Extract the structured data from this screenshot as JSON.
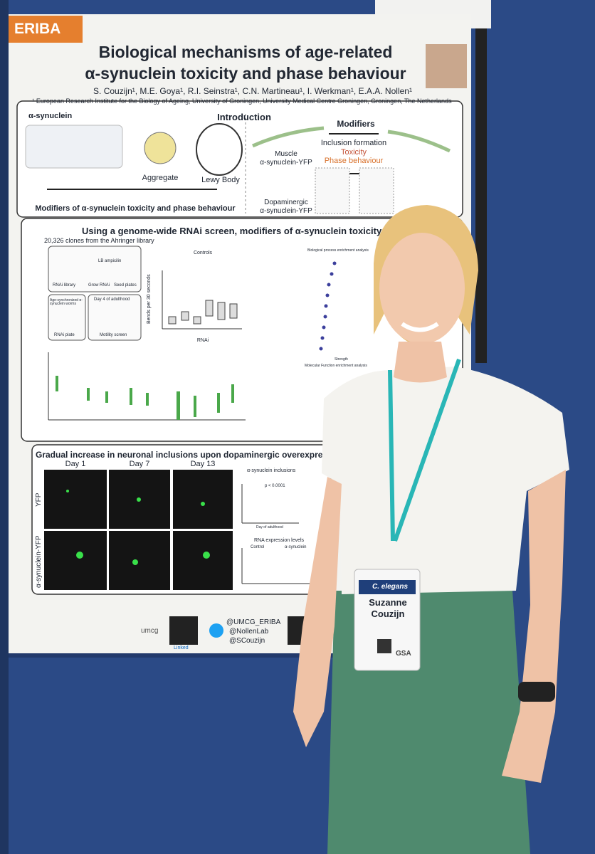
{
  "poster": {
    "logo": "ERIBA",
    "title": [
      "Biological mechanisms of age-related",
      "α-synuclein toxicity and  phase behaviour"
    ],
    "authors": "S. Couzijn¹, M.E. Goya¹, R.I. Seinstra¹, C.N. Martineau¹, I. Werkman¹, E.A.A. Nollen¹",
    "affiliation": "¹ European Research Institute for the Biology of Ageing, University of Groningen, University Medical Centre Groningen, Groningen, The Netherlands",
    "introduction": {
      "heading": "Introduction",
      "protein": "α-synuclein",
      "aggregate": "Aggregate",
      "lewy_body": "Lewy Body",
      "modifiers": "Modifiers",
      "inclusion": "Inclusion formation",
      "toxicity": "Toxicity",
      "phase": "Phase behaviour",
      "muscle": [
        "Muscle",
        "α-synuclein-YFP"
      ],
      "dopaminergic": [
        "Dopaminergic",
        "α-synuclein-YFP"
      ],
      "footer": "Modifiers of α-synuclein toxicity and phase behaviour"
    },
    "screen": {
      "heading": "Using a genome-wide RNAi screen, modifiers of  α-synuclein toxicity can be iden",
      "clones": "20,326 clones from the Ahringer library",
      "steps": [
        "RNAi library",
        "LB ampicilin",
        "Grow RNAi",
        "Seed plates",
        "Age-synchronized α-synuclein worms",
        "Day 4 of adulthood",
        "RNAi plate",
        "Motility screen"
      ],
      "controls": "Controls",
      "y_label": "Bends per 30 seconds",
      "x_label": "RNAi",
      "bio_process": "Biological process enrichment analysis",
      "mol_function": "Molecular Function enrichment analysis",
      "strength": "Strength"
    },
    "neuronal": {
      "heading": "Gradual increase in neuronal inclusions upon dopaminergic overexpression of α-",
      "days": [
        "Day 1",
        "Day 7",
        "Day 13"
      ],
      "rows": [
        "YFP",
        "α-synuclein-YFP"
      ],
      "inclusions": "α-synuclein inclusions",
      "pvalue": "p < 0.0001",
      "rna": "RNA expression levels",
      "control": "Control",
      "asyn": "α-synuclein",
      "day_axis": "Day of adulthood"
    },
    "footer": {
      "umcg": "umcg",
      "handles": [
        "@UMCG_ERIBA",
        "@NollenLab",
        "@SCouzijn"
      ],
      "linkedin": "Linked"
    }
  },
  "badge": {
    "brand": "C. elegans",
    "name": [
      "Suzanne",
      "Couzijn"
    ],
    "society": "GSA"
  }
}
